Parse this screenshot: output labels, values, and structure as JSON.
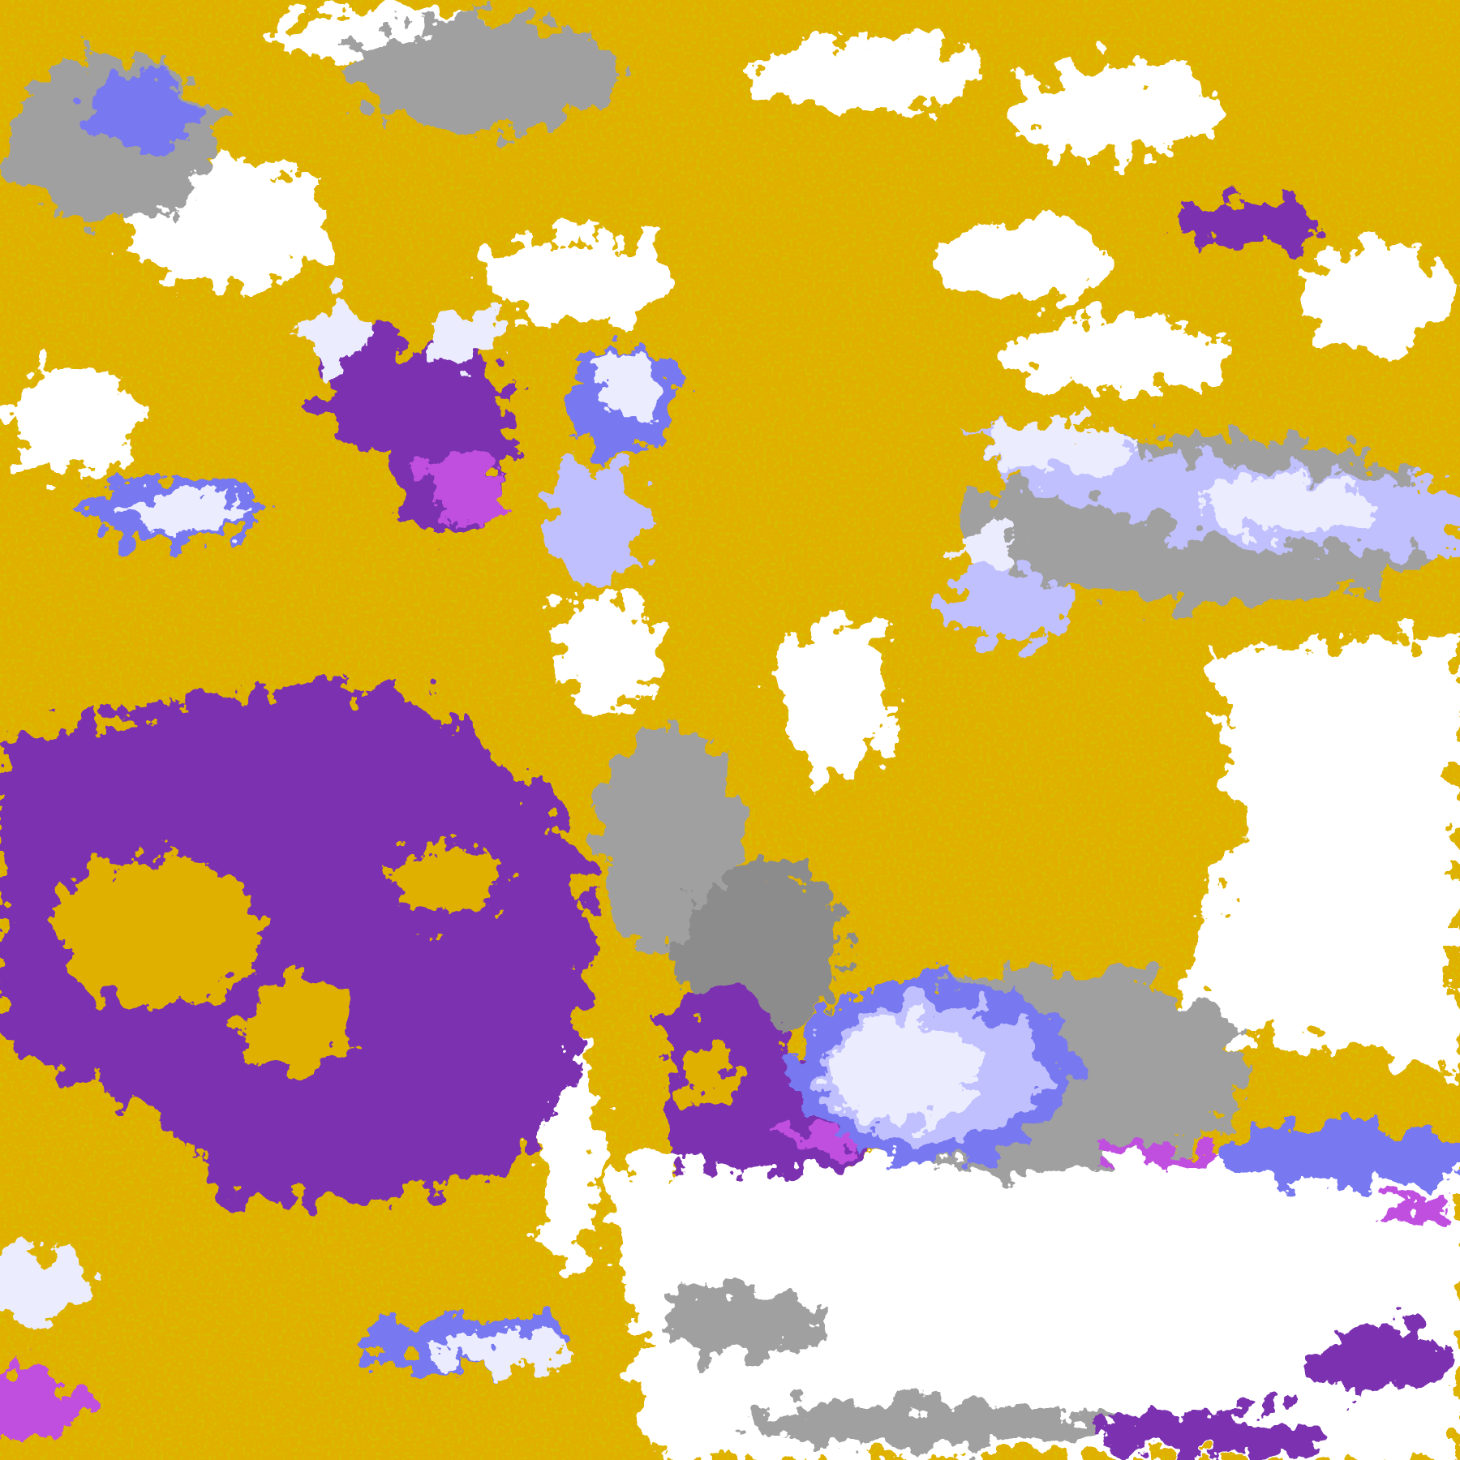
{
  "map": {
    "kind": "classified satellite cloud-top imagery",
    "labels": [],
    "palette": {
      "clear": "#ffffff",
      "gold": "#e0b000",
      "dark_gold": "#b08000",
      "purple": "#7b30b0",
      "magenta": "#c050e0",
      "blue": "#7878f0",
      "lavender": "#c0c0ff",
      "pale_lavender": "#ececff",
      "gray": "#a0a0a0",
      "dark_gray": "#8c8c8c"
    }
  }
}
